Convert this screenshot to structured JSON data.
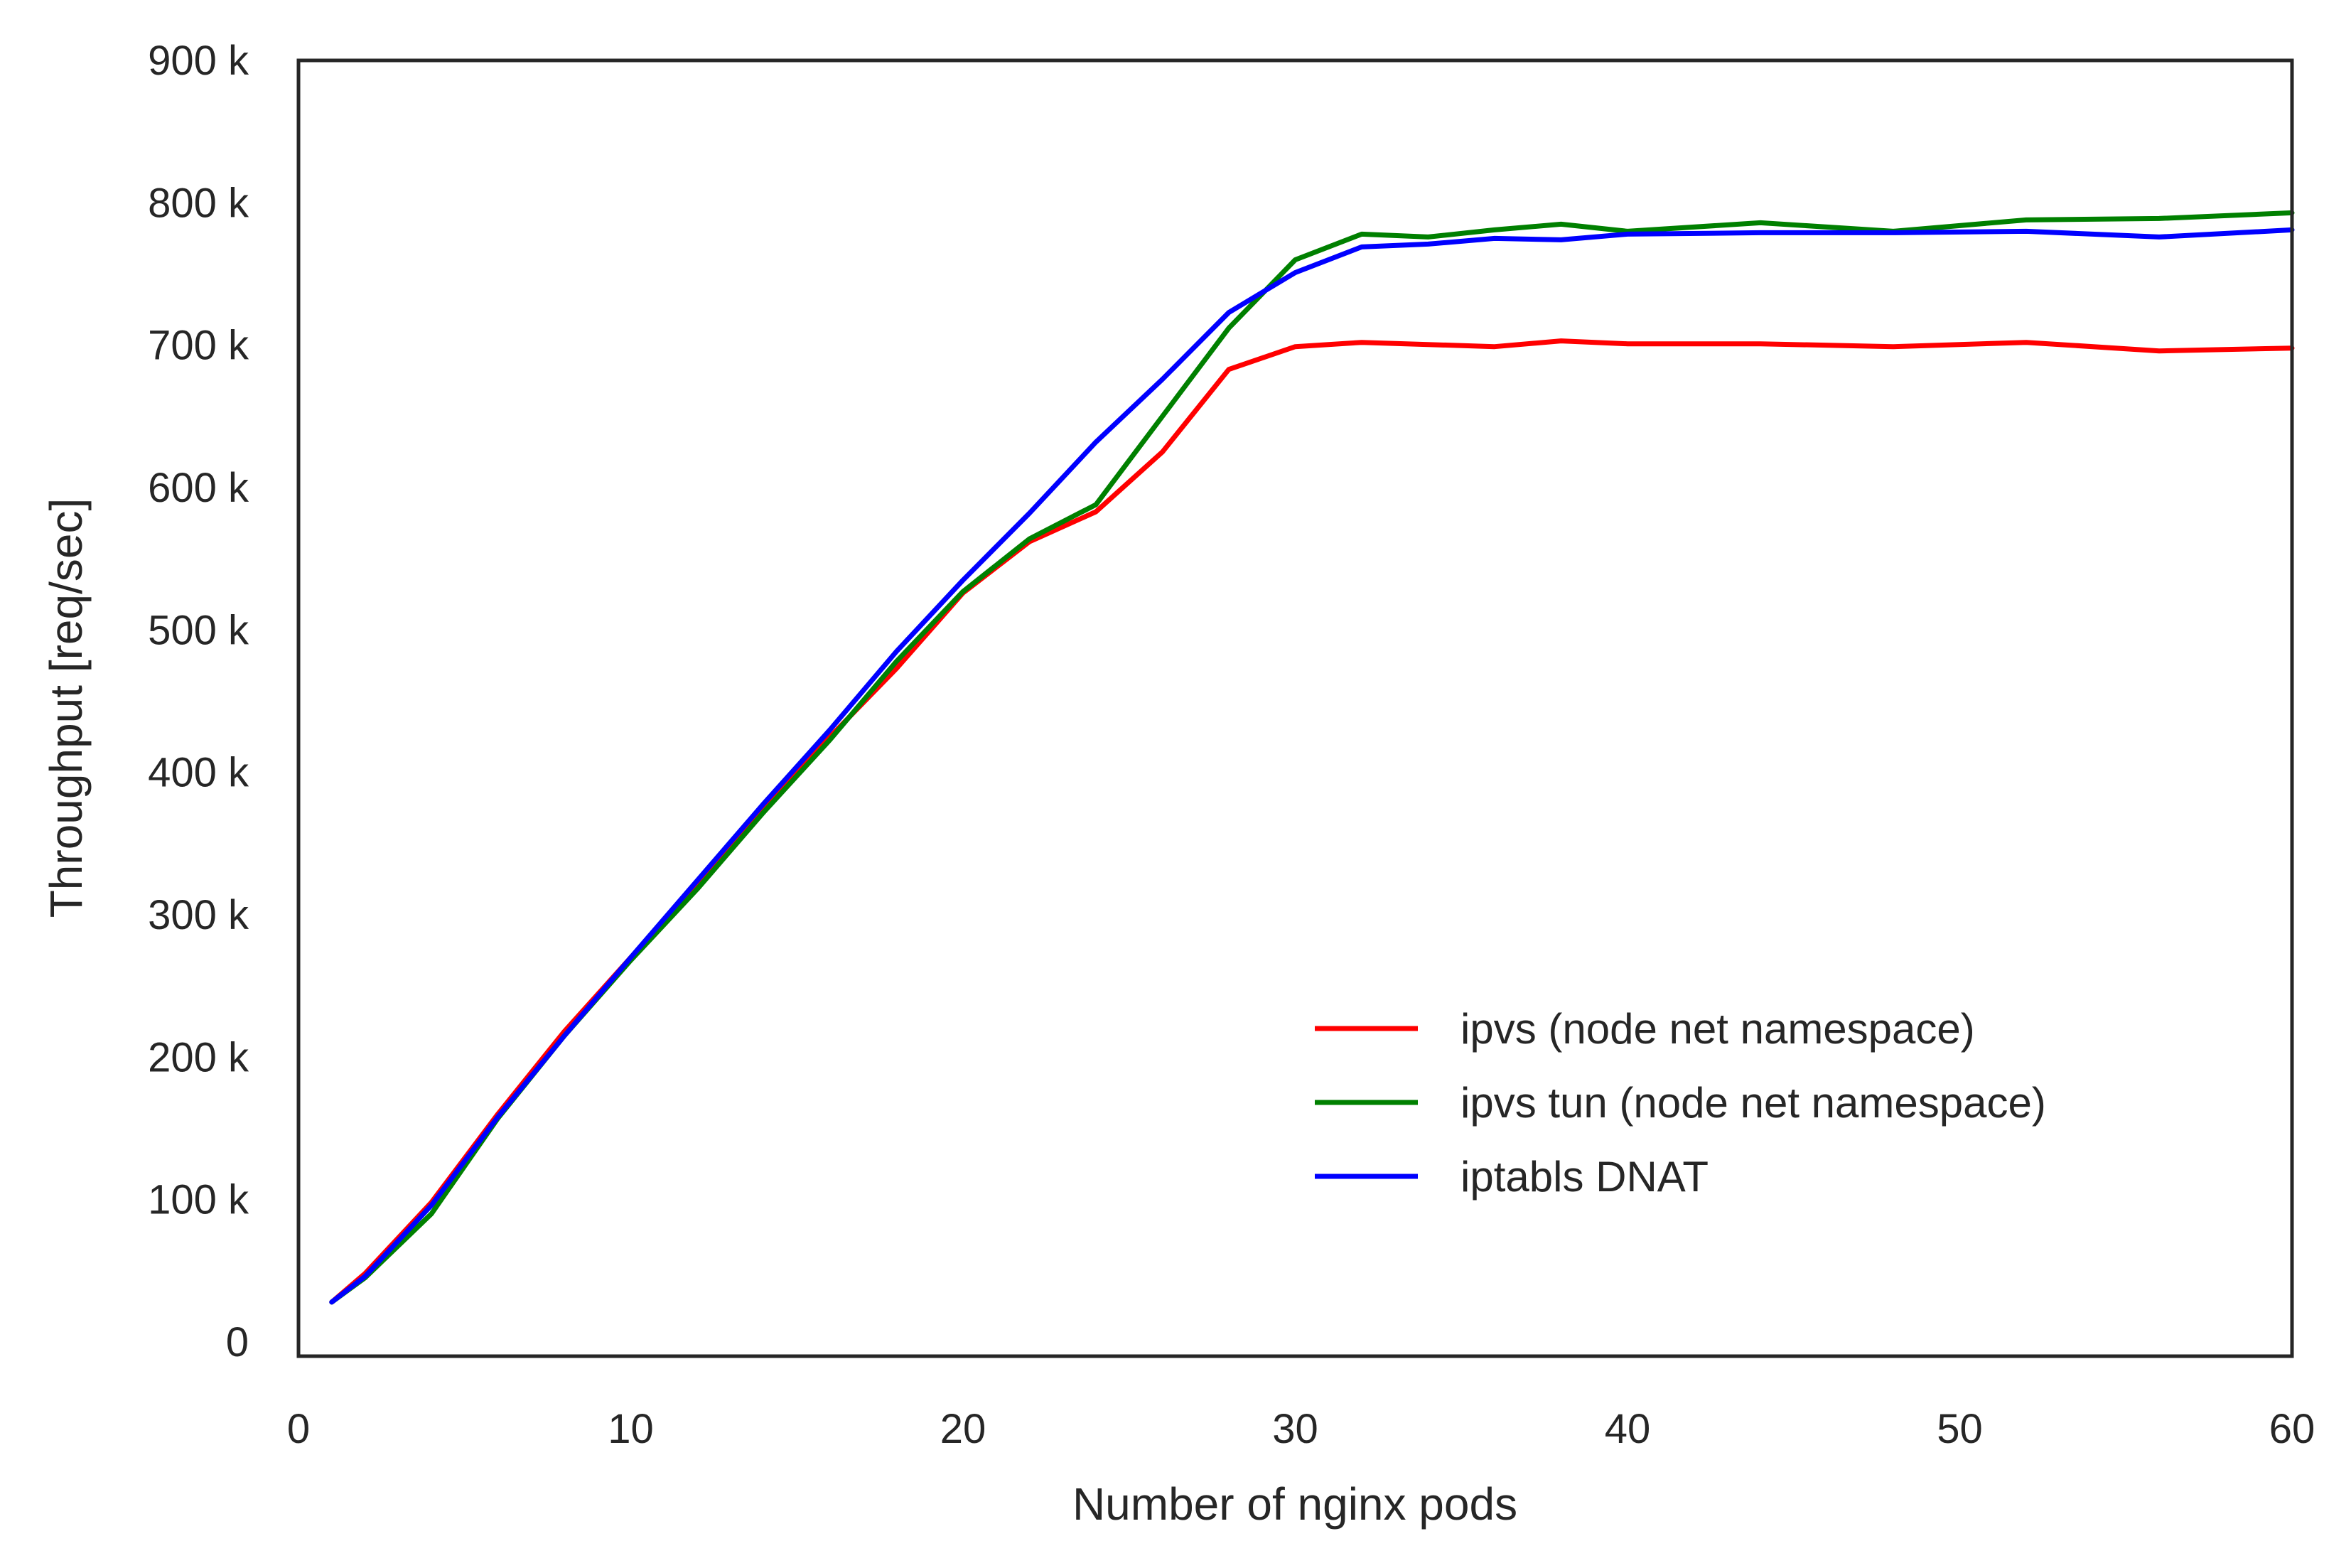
{
  "chart_data": {
    "type": "line",
    "title": "",
    "xlabel": "Number of nginx pods",
    "ylabel": "Throughput [req/sec]",
    "xlim": [
      0,
      60
    ],
    "ylim": [
      -10000,
      900000
    ],
    "x_ticks": [
      0,
      10,
      20,
      30,
      40,
      50,
      60
    ],
    "x_tick_labels": [
      "0",
      "10",
      "20",
      "30",
      "40",
      "50",
      "60"
    ],
    "y_ticks": [
      0,
      100000,
      200000,
      300000,
      400000,
      500000,
      600000,
      700000,
      800000,
      900000
    ],
    "y_tick_labels": [
      "0",
      "100 k",
      "200 k",
      "300 k",
      "400 k",
      "500 k",
      "600 k",
      "700 k",
      "800 k",
      "900 k"
    ],
    "grid": false,
    "legend_position": "lower-right",
    "series": [
      {
        "name": "ipvs (node net namespace)",
        "color": "#ff0000",
        "x": [
          1,
          2,
          4,
          6,
          8,
          10,
          12,
          14,
          16,
          18,
          20,
          22,
          24,
          26,
          28,
          30,
          32,
          36,
          38,
          40,
          44,
          48,
          52,
          56,
          60
        ],
        "y": [
          28000,
          48000,
          98000,
          160000,
          218000,
          270000,
          320000,
          373000,
          425000,
          473000,
          526000,
          562000,
          583000,
          625000,
          683000,
          699000,
          702000,
          699000,
          703000,
          701000,
          701000,
          699000,
          702000,
          696000,
          698000
        ]
      },
      {
        "name": "ipvs tun (node net namespace)",
        "color": "#008000",
        "x": [
          1,
          2,
          4,
          6,
          8,
          10,
          12,
          14,
          16,
          18,
          20,
          22,
          24,
          26,
          28,
          30,
          32,
          34,
          36,
          38,
          40,
          44,
          48,
          52,
          56,
          60
        ],
        "y": [
          28000,
          45000,
          90000,
          157000,
          215000,
          268000,
          318000,
          372000,
          423000,
          478000,
          527000,
          564000,
          588000,
          650000,
          712000,
          760000,
          778000,
          776000,
          781000,
          785000,
          780000,
          786000,
          780000,
          788000,
          789000,
          793000
        ]
      },
      {
        "name": "iptabls DNAT",
        "color": "#0000ff",
        "x": [
          1,
          2,
          4,
          6,
          8,
          10,
          12,
          14,
          16,
          18,
          20,
          22,
          24,
          26,
          28,
          30,
          32,
          34,
          36,
          38,
          40,
          44,
          48,
          52,
          56,
          60
        ],
        "y": [
          28000,
          46000,
          96000,
          158000,
          215000,
          270000,
          324000,
          378000,
          430000,
          485000,
          535000,
          582000,
          632000,
          676000,
          723000,
          751000,
          769000,
          771000,
          775000,
          774000,
          778000,
          779000,
          779000,
          780000,
          776000,
          781000
        ]
      }
    ]
  }
}
